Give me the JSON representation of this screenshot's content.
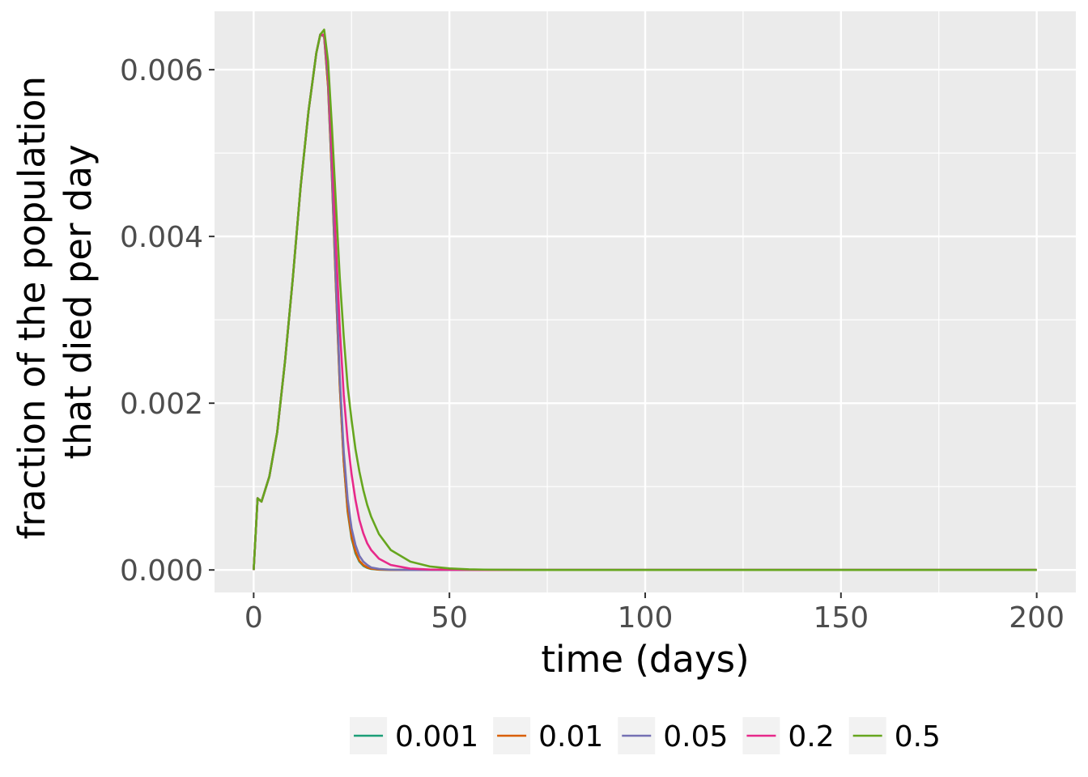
{
  "chart_data": {
    "type": "line",
    "xlabel": "time (days)",
    "ylabel_lines": [
      "fraction of the population",
      "that died per day"
    ],
    "xlim": [
      -10,
      210
    ],
    "ylim": [
      -0.00027,
      0.0067
    ],
    "x_ticks": [
      0,
      50,
      100,
      150,
      200
    ],
    "x_tick_labels": [
      "0",
      "50",
      "100",
      "150",
      "200"
    ],
    "x_minor_ticks": [
      25,
      75,
      125,
      175
    ],
    "y_ticks": [
      0,
      0.002,
      0.004,
      0.006
    ],
    "y_tick_labels": [
      "0.000",
      "0.002",
      "0.004",
      "0.006"
    ],
    "y_minor_ticks": [
      0.001,
      0.003,
      0.005
    ],
    "grid": true,
    "legend_position": "bottom",
    "colors": {
      "panel_background": "#ebebeb",
      "grid": "#ffffff",
      "legend_key_background": "#f2f2f2"
    },
    "series": [
      {
        "name": "0.001",
        "color": "#1b9e77",
        "x": [
          0,
          1,
          2,
          4,
          6,
          8,
          10,
          12,
          14,
          16,
          17,
          18,
          19,
          20,
          21,
          22,
          23,
          24,
          25,
          26,
          27,
          28,
          29,
          30,
          32,
          35,
          40,
          50,
          60,
          80,
          100,
          150,
          200
        ],
        "y": [
          0,
          0.00086,
          0.00082,
          0.00112,
          0.00165,
          0.0025,
          0.0035,
          0.0046,
          0.0055,
          0.0062,
          0.00642,
          0.0064,
          0.0058,
          0.0047,
          0.0034,
          0.0022,
          0.0013,
          0.0007,
          0.00038,
          0.0002,
          0.0001,
          5e-05,
          2.5e-05,
          1.2e-05,
          4e-06,
          1e-06,
          0,
          0,
          0,
          0,
          0,
          0,
          0
        ]
      },
      {
        "name": "0.01",
        "color": "#d95f02",
        "x": [
          0,
          1,
          2,
          4,
          6,
          8,
          10,
          12,
          14,
          16,
          17,
          18,
          19,
          20,
          21,
          22,
          23,
          24,
          25,
          26,
          27,
          28,
          29,
          30,
          32,
          35,
          40,
          50,
          60,
          80,
          100,
          150,
          200
        ],
        "y": [
          0,
          0.00086,
          0.00082,
          0.00112,
          0.00165,
          0.0025,
          0.0035,
          0.0046,
          0.0055,
          0.0062,
          0.00642,
          0.0064,
          0.0058,
          0.0047,
          0.0034,
          0.0022,
          0.0013,
          0.00072,
          0.0004,
          0.00022,
          0.00011,
          6e-05,
          3e-05,
          1.5e-05,
          5e-06,
          1e-06,
          0,
          0,
          0,
          0,
          0,
          0,
          0
        ]
      },
      {
        "name": "0.05",
        "color": "#7570b3",
        "x": [
          0,
          1,
          2,
          4,
          6,
          8,
          10,
          12,
          14,
          16,
          17,
          18,
          19,
          20,
          21,
          22,
          23,
          24,
          25,
          26,
          27,
          28,
          29,
          30,
          32,
          35,
          40,
          50,
          60,
          80,
          100,
          150,
          200
        ],
        "y": [
          0,
          0.00086,
          0.00082,
          0.00112,
          0.00165,
          0.0025,
          0.0035,
          0.0046,
          0.0055,
          0.0062,
          0.00642,
          0.00641,
          0.0059,
          0.0048,
          0.0035,
          0.0023,
          0.00142,
          0.00085,
          0.0005,
          0.0003,
          0.00017,
          0.0001,
          6e-05,
          3e-05,
          1.2e-05,
          3e-06,
          0,
          0,
          0,
          0,
          0,
          0,
          0
        ]
      },
      {
        "name": "0.2",
        "color": "#e7298a",
        "x": [
          0,
          1,
          2,
          4,
          6,
          8,
          10,
          12,
          14,
          16,
          17,
          18,
          19,
          20,
          21,
          22,
          23,
          24,
          25,
          26,
          27,
          28,
          29,
          30,
          32,
          35,
          40,
          45,
          50,
          60,
          80,
          100,
          150,
          200
        ],
        "y": [
          0,
          0.00086,
          0.00082,
          0.00112,
          0.00165,
          0.0025,
          0.0035,
          0.0046,
          0.0055,
          0.0062,
          0.00642,
          0.00642,
          0.006,
          0.005,
          0.0039,
          0.0029,
          0.0021,
          0.00155,
          0.00115,
          0.00084,
          0.0006,
          0.00044,
          0.00032,
          0.00024,
          0.000135,
          6e-05,
          1.6e-05,
          5e-06,
          2e-06,
          0,
          0,
          0,
          0,
          0
        ]
      },
      {
        "name": "0.5",
        "color": "#66a61e",
        "x": [
          0,
          1,
          2,
          4,
          6,
          8,
          10,
          12,
          14,
          16,
          17,
          18,
          19,
          20,
          21,
          22,
          23,
          24,
          25,
          26,
          27,
          28,
          29,
          30,
          32,
          35,
          40,
          45,
          50,
          55,
          60,
          70,
          80,
          100,
          150,
          200
        ],
        "y": [
          0,
          0.00086,
          0.00082,
          0.00112,
          0.00165,
          0.0025,
          0.0035,
          0.0046,
          0.0055,
          0.0062,
          0.00642,
          0.00648,
          0.0061,
          0.0053,
          0.0044,
          0.0035,
          0.0028,
          0.0022,
          0.0018,
          0.00145,
          0.00118,
          0.00096,
          0.00078,
          0.00064,
          0.00043,
          0.00024,
          0.0001,
          4.2e-05,
          1.8e-05,
          7e-06,
          3e-06,
          0,
          0,
          0,
          0,
          0
        ]
      }
    ]
  }
}
